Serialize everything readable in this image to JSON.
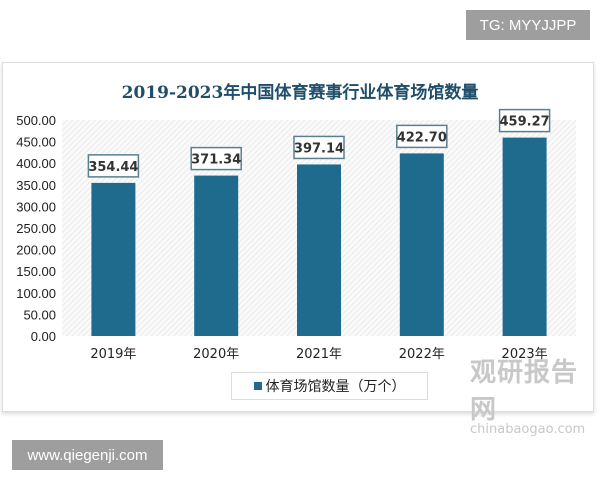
{
  "badges": {
    "top_right": "TG: MYYJJPP",
    "bottom_left": "www.qiegenji.com"
  },
  "watermark": {
    "name": "观研报告网",
    "url": "chinabaogao.com"
  },
  "chart_data": {
    "type": "bar",
    "title": "2019-2023年中国体育赛事行业体育场馆数量",
    "categories": [
      "2019年",
      "2020年",
      "2021年",
      "2022年",
      "2023年"
    ],
    "series": [
      {
        "name": "体育场馆数量（万个）",
        "values": [
          354.44,
          371.34,
          397.14,
          422.7,
          459.27
        ],
        "color": "#1f6b8e"
      }
    ],
    "data_labels": [
      "354.44",
      "371.34",
      "397.14",
      "422.70",
      "459.27"
    ],
    "yticks": [
      "0.00",
      "50.00",
      "100.00",
      "150.00",
      "200.00",
      "250.00",
      "300.00",
      "350.00",
      "400.00",
      "450.00",
      "500.00"
    ],
    "ylim": [
      0,
      500
    ],
    "grid": false,
    "legend": "bottom-center"
  }
}
